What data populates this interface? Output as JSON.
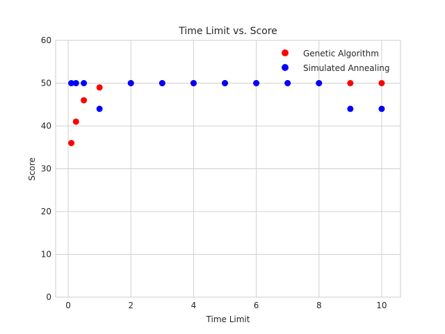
{
  "chart_data": {
    "type": "scatter",
    "title": "Time Limit vs. Score",
    "xlabel": "Time Limit",
    "ylabel": "Score",
    "xlim": [
      -0.4,
      10.6
    ],
    "ylim": [
      0,
      60
    ],
    "xticks": [
      0,
      2,
      4,
      6,
      8,
      10
    ],
    "yticks": [
      0,
      10,
      20,
      30,
      40,
      50,
      60
    ],
    "grid": true,
    "legend_position": "top-right",
    "series": [
      {
        "name": "Genetic Algorithm",
        "color": "#ff0000",
        "x": [
          0.1,
          0.25,
          0.5,
          1,
          2,
          3,
          4,
          5,
          6,
          7,
          8,
          9,
          10
        ],
        "y": [
          36,
          41,
          46,
          49,
          50,
          50,
          50,
          50,
          50,
          50,
          50,
          50,
          50
        ]
      },
      {
        "name": "Simulated Annealing",
        "color": "#0000ff",
        "x": [
          0.1,
          0.25,
          0.5,
          1,
          2,
          3,
          4,
          5,
          6,
          7,
          8,
          9,
          10
        ],
        "y": [
          50,
          50,
          50,
          44,
          50,
          50,
          50,
          50,
          50,
          50,
          50,
          44,
          44
        ]
      }
    ]
  }
}
